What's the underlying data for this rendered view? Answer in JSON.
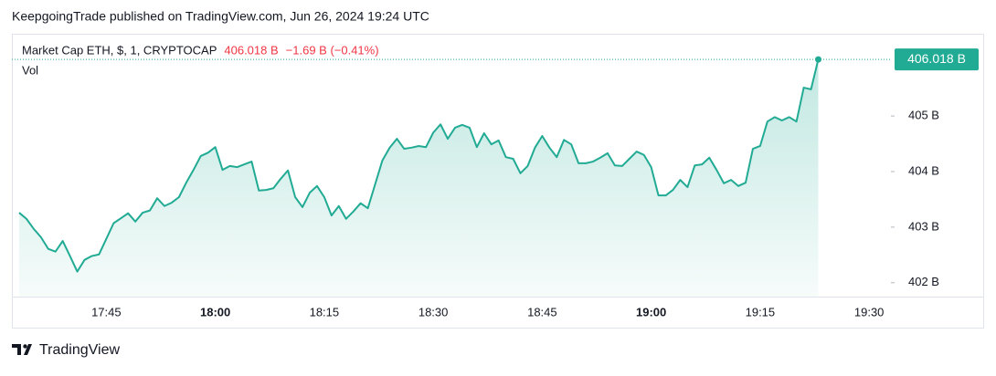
{
  "header": {
    "text": "KeepgoingTrade published on TradingView.com, Jun 26, 2024 19:24 UTC"
  },
  "chart_data": {
    "type": "area",
    "legend": {
      "symbol": "Market Cap ETH, $, 1, CRYPTOCAP",
      "price": "406.018 B",
      "change": "−1.69 B (−0.41%)",
      "volume": "Vol"
    },
    "color": "#22ab94",
    "change_color": "#f23645",
    "x": [
      "17:33",
      "17:34",
      "17:35",
      "17:36",
      "17:37",
      "17:38",
      "17:39",
      "17:40",
      "17:41",
      "17:42",
      "17:43",
      "17:44",
      "17:45",
      "17:46",
      "17:47",
      "17:48",
      "17:49",
      "17:50",
      "17:51",
      "17:52",
      "17:53",
      "17:54",
      "17:55",
      "17:56",
      "17:57",
      "17:58",
      "17:59",
      "18:00",
      "18:01",
      "18:02",
      "18:03",
      "18:04",
      "18:05",
      "18:06",
      "18:07",
      "18:08",
      "18:09",
      "18:10",
      "18:11",
      "18:12",
      "18:13",
      "18:14",
      "18:15",
      "18:16",
      "18:17",
      "18:18",
      "18:19",
      "18:20",
      "18:21",
      "18:22",
      "18:23",
      "18:24",
      "18:25",
      "18:26",
      "18:27",
      "18:28",
      "18:29",
      "18:30",
      "18:31",
      "18:32",
      "18:33",
      "18:34",
      "18:35",
      "18:36",
      "18:37",
      "18:38",
      "18:39",
      "18:40",
      "18:41",
      "18:42",
      "18:43",
      "18:44",
      "18:45",
      "18:46",
      "18:47",
      "18:48",
      "18:49",
      "18:50",
      "18:51",
      "18:52",
      "18:53",
      "18:54",
      "18:55",
      "18:56",
      "18:57",
      "18:58",
      "18:59",
      "19:00",
      "19:01",
      "19:02",
      "19:03",
      "19:04",
      "19:05",
      "19:06",
      "19:07",
      "19:08",
      "19:09",
      "19:10",
      "19:11",
      "19:12",
      "19:13",
      "19:14",
      "19:15",
      "19:16",
      "19:17",
      "19:18",
      "19:19",
      "19:20",
      "19:21",
      "19:22",
      "19:23"
    ],
    "values": [
      403.26,
      403.15,
      402.97,
      402.82,
      402.61,
      402.56,
      402.75,
      402.48,
      402.2,
      402.41,
      402.48,
      402.51,
      402.79,
      403.07,
      403.16,
      403.25,
      403.1,
      403.26,
      403.3,
      403.52,
      403.38,
      403.44,
      403.54,
      403.8,
      404.03,
      404.28,
      404.34,
      404.44,
      404.03,
      404.1,
      404.08,
      404.13,
      404.18,
      403.66,
      403.67,
      403.7,
      403.87,
      404.02,
      403.54,
      403.36,
      403.62,
      403.74,
      403.54,
      403.21,
      403.38,
      403.15,
      403.28,
      403.43,
      403.34,
      403.77,
      404.2,
      404.43,
      404.59,
      404.41,
      404.43,
      404.46,
      404.44,
      404.7,
      404.85,
      404.59,
      404.79,
      404.84,
      404.79,
      404.44,
      404.69,
      404.49,
      404.56,
      404.26,
      404.23,
      403.97,
      404.1,
      404.43,
      404.64,
      404.43,
      404.26,
      404.57,
      404.49,
      404.15,
      404.15,
      404.18,
      404.25,
      404.33,
      404.11,
      404.1,
      404.23,
      404.36,
      404.3,
      404.08,
      403.57,
      403.57,
      403.67,
      403.85,
      403.72,
      404.11,
      404.13,
      404.25,
      404.03,
      403.79,
      403.85,
      403.74,
      403.8,
      404.41,
      404.46,
      404.9,
      404.98,
      404.92,
      404.98,
      404.9,
      405.51,
      405.48,
      406.018
    ],
    "xlim": [
      "17:32",
      "19:33"
    ],
    "xticks": [
      "17:45",
      "18:00",
      "18:15",
      "18:30",
      "18:45",
      "19:00",
      "19:15",
      "19:30"
    ],
    "ylim": [
      401.75,
      406.48
    ],
    "yticks": [
      {
        "value": 402,
        "label": "402 B"
      },
      {
        "value": 403,
        "label": "403 B"
      },
      {
        "value": 404,
        "label": "404 B"
      },
      {
        "value": 405,
        "label": "405 B"
      }
    ]
  },
  "footer": {
    "brand": "TradingView"
  }
}
